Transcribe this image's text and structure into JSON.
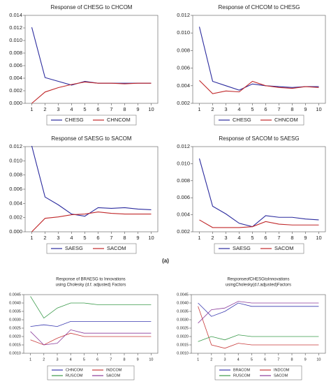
{
  "caption": "(a)",
  "chart_data": [
    {
      "type": "line",
      "title": "Response of CHESG to CHCOM",
      "categories": [
        1,
        2,
        3,
        4,
        5,
        6,
        7,
        8,
        9,
        10
      ],
      "ylim": [
        0,
        0.014
      ],
      "yticks": [
        {
          "value": 0,
          "label": "0.000"
        },
        0.002,
        0.004,
        0.006,
        0.008,
        {
          "value": 0.01,
          "label": "0.010"
        },
        0.012,
        0.014
      ],
      "series": [
        {
          "name": "CHESG",
          "color": "#2b2b9e",
          "values": [
            0.0121,
            0.0041,
            0.0035,
            0.0029,
            0.0035,
            0.0032,
            0.0032,
            0.0032,
            0.0032,
            0.0032
          ]
        },
        {
          "name": "CHNCOM",
          "color": "#c0282a",
          "values": [
            0,
            0.0018,
            0.0025,
            0.003,
            0.0034,
            0.0032,
            0.0032,
            0.0031,
            0.0032,
            0.0032
          ]
        }
      ]
    },
    {
      "type": "line",
      "title": "Response of CHCOM to CHESG",
      "categories": [
        1,
        2,
        3,
        4,
        5,
        6,
        7,
        8,
        9,
        10
      ],
      "ylim": [
        0.002,
        0.012
      ],
      "yticks": [
        0.002,
        0.004,
        0.006,
        0.008,
        {
          "value": 0.01,
          "label": "0.010"
        },
        0.012
      ],
      "series": [
        {
          "name": "CHESG",
          "color": "#2b2b9e",
          "values": [
            0.0107,
            0.0045,
            0.004,
            0.0035,
            0.0042,
            0.004,
            0.0039,
            0.0038,
            0.0039,
            0.0039
          ]
        },
        {
          "name": "CHNCOM",
          "color": "#c0282a",
          "values": [
            0.0046,
            0.0031,
            0.0034,
            0.0033,
            0.0045,
            0.004,
            0.0038,
            0.0037,
            0.0039,
            0.0038
          ]
        }
      ]
    },
    {
      "type": "line",
      "title": "Response of SAESG to SACOM",
      "categories": [
        1,
        2,
        3,
        4,
        5,
        6,
        7,
        8,
        9,
        10
      ],
      "ylim": [
        0,
        0.012
      ],
      "yticks": [
        {
          "value": 0,
          "label": "0.000"
        },
        0.002,
        0.004,
        0.006,
        0.008,
        {
          "value": 0.01,
          "label": "0.010"
        },
        0.012
      ],
      "series": [
        {
          "name": "SAESG",
          "color": "#2b2b9e",
          "values": [
            0.0121,
            0.0049,
            0.0038,
            0.0025,
            0.0022,
            0.0034,
            0.0033,
            0.0034,
            0.0032,
            0.0031
          ]
        },
        {
          "name": "SACOM",
          "color": "#c0282a",
          "values": [
            0,
            0.0019,
            0.0021,
            0.0024,
            0.0025,
            0.0028,
            0.0026,
            0.0025,
            0.0025,
            0.0025
          ]
        }
      ]
    },
    {
      "type": "line",
      "title": "Response of SACOM to SAESG",
      "categories": [
        1,
        2,
        3,
        4,
        5,
        6,
        7,
        8,
        9,
        10
      ],
      "ylim": [
        0.002,
        0.012
      ],
      "yticks": [
        0.002,
        0.004,
        0.006,
        0.008,
        {
          "value": 0.01,
          "label": "0.010"
        },
        0.012
      ],
      "series": [
        {
          "name": "SAESG",
          "color": "#2b2b9e",
          "values": [
            0.0106,
            0.005,
            0.0041,
            0.003,
            0.0026,
            0.0039,
            0.0037,
            0.0037,
            0.0035,
            0.0034
          ]
        },
        {
          "name": "SACOM",
          "color": "#c0282a",
          "values": [
            0.0034,
            0.0025,
            0.0025,
            0.0025,
            0.0026,
            0.0032,
            0.0029,
            0.0028,
            0.0028,
            0.0028
          ]
        }
      ]
    },
    {
      "type": "line",
      "title": "Response of BRAESG to Innovations",
      "subtitle": "using Cholesky (d.f. adjusted) Factors",
      "categories": [
        1,
        2,
        3,
        4,
        5,
        6,
        7,
        8,
        9,
        10
      ],
      "ylim": [
        0.001,
        0.0045
      ],
      "yticks": [
        {
          "value": 0.001,
          "label": "0.0010"
        },
        0.0015,
        {
          "value": 0.002,
          "label": "0.0020"
        },
        0.0025,
        {
          "value": 0.003,
          "label": "0.0030"
        },
        0.0035,
        {
          "value": 0.004,
          "label": "0.0040"
        },
        0.0045
      ],
      "series": [
        {
          "name": "CHNCOM",
          "color": "#3a3ab0",
          "values": [
            0.0026,
            0.0027,
            0.0026,
            0.0029,
            0.0029,
            0.0029,
            0.0029,
            0.0029,
            0.0029,
            0.0029
          ]
        },
        {
          "name": "INDCOM",
          "color": "#c83a3a",
          "values": [
            0.0018,
            0.0015,
            0.0019,
            0.0022,
            0.002,
            0.002,
            0.002,
            0.002,
            0.002,
            0.002
          ]
        },
        {
          "name": "RUSCOM",
          "color": "#3a9a4a",
          "values": [
            0.0044,
            0.0031,
            0.0037,
            0.004,
            0.004,
            0.0039,
            0.0039,
            0.0039,
            0.0039,
            0.0039
          ]
        },
        {
          "name": "SACOM",
          "color": "#8a3a9a",
          "values": [
            0.0023,
            0.0015,
            0.0016,
            0.0024,
            0.0022,
            0.0022,
            0.0022,
            0.0022,
            0.0022,
            0.0022
          ]
        }
      ]
    },
    {
      "type": "line",
      "title": "ResponseofCHESGtoInnovations",
      "subtitle": "usingCholesky(d.f.adjusted)Factors",
      "categories": [
        1,
        2,
        3,
        4,
        5,
        6,
        7,
        8,
        9,
        10
      ],
      "ylim": [
        0.001,
        0.0045
      ],
      "yticks": [
        {
          "value": 0.001,
          "label": "0.0010"
        },
        0.0015,
        {
          "value": 0.002,
          "label": "0.0020"
        },
        0.0025,
        {
          "value": 0.003,
          "label": "0.0030"
        },
        0.0035,
        {
          "value": 0.004,
          "label": "0.0040"
        },
        0.0045
      ],
      "series": [
        {
          "name": "BRACOM",
          "color": "#3a3ab0",
          "values": [
            0.004,
            0.0032,
            0.0035,
            0.004,
            0.0038,
            0.0038,
            0.0038,
            0.0038,
            0.0038,
            0.0038
          ]
        },
        {
          "name": "INDCOM",
          "color": "#c83a3a",
          "values": [
            0.0038,
            0.0015,
            0.0013,
            0.0016,
            0.0015,
            0.0015,
            0.0015,
            0.0015,
            0.0015,
            0.0015
          ]
        },
        {
          "name": "RUSCOM",
          "color": "#3a9a4a",
          "values": [
            0.0017,
            0.002,
            0.0018,
            0.0021,
            0.002,
            0.002,
            0.002,
            0.002,
            0.002,
            0.002
          ]
        },
        {
          "name": "SACOM",
          "color": "#8a3a9a",
          "values": [
            0.0028,
            0.0036,
            0.0037,
            0.0041,
            0.004,
            0.004,
            0.004,
            0.004,
            0.004,
            0.004
          ]
        }
      ]
    }
  ]
}
